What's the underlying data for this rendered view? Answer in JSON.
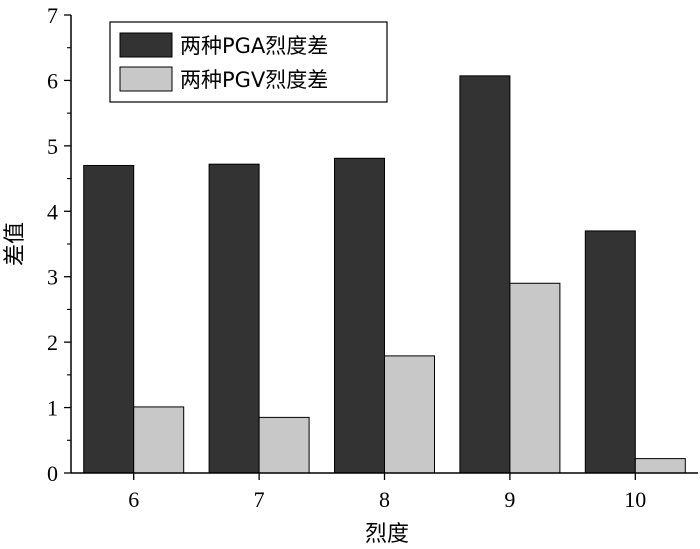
{
  "chart_data": {
    "type": "bar",
    "title": "",
    "xlabel": "烈度",
    "ylabel": "差值",
    "categories": [
      "6",
      "7",
      "8",
      "9",
      "10"
    ],
    "ylim": [
      0,
      7
    ],
    "yticks": [
      "0",
      "1",
      "2",
      "3",
      "4",
      "5",
      "6",
      "7"
    ],
    "grid": false,
    "legend_position": "top-left",
    "series": [
      {
        "name": "两种PGA烈度差",
        "values": [
          4.7,
          4.72,
          4.81,
          6.07,
          3.7
        ],
        "color": "#333333"
      },
      {
        "name": "两种PGV烈度差",
        "values": [
          1.01,
          0.85,
          1.79,
          2.9,
          0.22
        ],
        "color": "#c8c8c8"
      }
    ]
  }
}
